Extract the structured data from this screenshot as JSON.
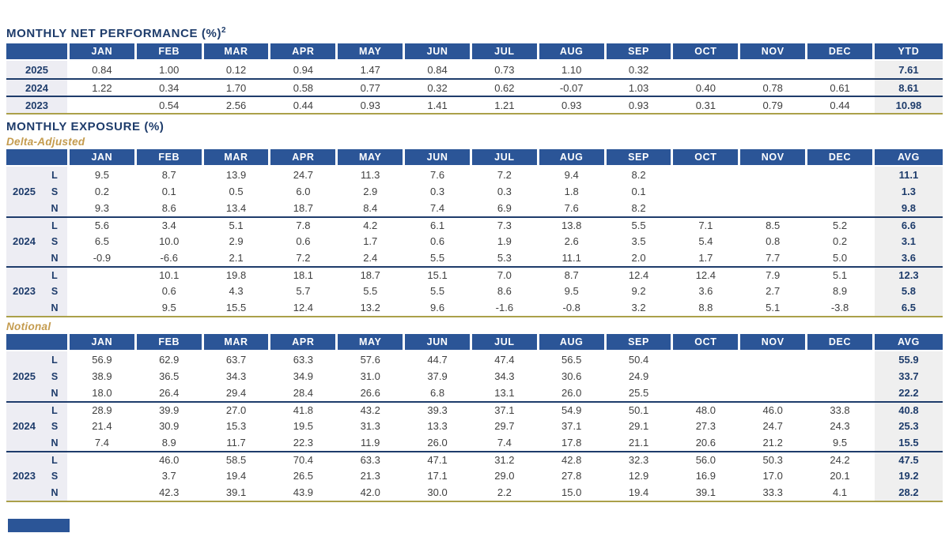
{
  "colors": {
    "header_blue": "#2b5597",
    "navy": "#1e3c6b",
    "gold_line": "#aba04a",
    "gold_text": "#c49b4e",
    "label_bg": "#ededf3",
    "avg_bg": "#efefef",
    "data_text": "#3f3f3f"
  },
  "months": [
    "JAN",
    "FEB",
    "MAR",
    "APR",
    "MAY",
    "JUN",
    "JUL",
    "AUG",
    "SEP",
    "OCT",
    "NOV",
    "DEC"
  ],
  "performance": {
    "title": "MONTHLY NET PERFORMANCE (%)",
    "footnote_ref": "2",
    "last_col": "YTD",
    "rows": [
      {
        "year": "2025",
        "values": [
          "0.84",
          "1.00",
          "0.12",
          "0.94",
          "1.47",
          "0.84",
          "0.73",
          "1.10",
          "0.32",
          "",
          "",
          ""
        ],
        "total": "7.61"
      },
      {
        "year": "2024",
        "values": [
          "1.22",
          "0.34",
          "1.70",
          "0.58",
          "0.77",
          "0.32",
          "0.62",
          "-0.07",
          "1.03",
          "0.40",
          "0.78",
          "0.61"
        ],
        "total": "8.61"
      },
      {
        "year": "2023",
        "values": [
          "",
          "0.54",
          "2.56",
          "0.44",
          "0.93",
          "1.41",
          "1.21",
          "0.93",
          "0.93",
          "0.31",
          "0.79",
          "0.44"
        ],
        "total": "10.98"
      }
    ]
  },
  "exposure": {
    "title": "MONTHLY EXPOSURE (%)",
    "tables": [
      {
        "subtitle": "Delta-Adjusted",
        "last_col": "AVG",
        "groups": [
          {
            "year": "2025",
            "rows": [
              {
                "label": "L",
                "values": [
                  "9.5",
                  "8.7",
                  "13.9",
                  "24.7",
                  "11.3",
                  "7.6",
                  "7.2",
                  "9.4",
                  "8.2",
                  "",
                  "",
                  ""
                ],
                "total": "11.1"
              },
              {
                "label": "S",
                "values": [
                  "0.2",
                  "0.1",
                  "0.5",
                  "6.0",
                  "2.9",
                  "0.3",
                  "0.3",
                  "1.8",
                  "0.1",
                  "",
                  "",
                  ""
                ],
                "total": "1.3"
              },
              {
                "label": "N",
                "values": [
                  "9.3",
                  "8.6",
                  "13.4",
                  "18.7",
                  "8.4",
                  "7.4",
                  "6.9",
                  "7.6",
                  "8.2",
                  "",
                  "",
                  ""
                ],
                "total": "9.8"
              }
            ]
          },
          {
            "year": "2024",
            "rows": [
              {
                "label": "L",
                "values": [
                  "5.6",
                  "3.4",
                  "5.1",
                  "7.8",
                  "4.2",
                  "6.1",
                  "7.3",
                  "13.8",
                  "5.5",
                  "7.1",
                  "8.5",
                  "5.2"
                ],
                "total": "6.6"
              },
              {
                "label": "S",
                "values": [
                  "6.5",
                  "10.0",
                  "2.9",
                  "0.6",
                  "1.7",
                  "0.6",
                  "1.9",
                  "2.6",
                  "3.5",
                  "5.4",
                  "0.8",
                  "0.2"
                ],
                "total": "3.1"
              },
              {
                "label": "N",
                "values": [
                  "-0.9",
                  "-6.6",
                  "2.1",
                  "7.2",
                  "2.4",
                  "5.5",
                  "5.3",
                  "11.1",
                  "2.0",
                  "1.7",
                  "7.7",
                  "5.0"
                ],
                "total": "3.6"
              }
            ]
          },
          {
            "year": "2023",
            "rows": [
              {
                "label": "L",
                "values": [
                  "",
                  "10.1",
                  "19.8",
                  "18.1",
                  "18.7",
                  "15.1",
                  "7.0",
                  "8.7",
                  "12.4",
                  "12.4",
                  "7.9",
                  "5.1"
                ],
                "total": "12.3"
              },
              {
                "label": "S",
                "values": [
                  "",
                  "0.6",
                  "4.3",
                  "5.7",
                  "5.5",
                  "5.5",
                  "8.6",
                  "9.5",
                  "9.2",
                  "3.6",
                  "2.7",
                  "8.9"
                ],
                "total": "5.8"
              },
              {
                "label": "N",
                "values": [
                  "",
                  "9.5",
                  "15.5",
                  "12.4",
                  "13.2",
                  "9.6",
                  "-1.6",
                  "-0.8",
                  "3.2",
                  "8.8",
                  "5.1",
                  "-3.8"
                ],
                "total": "6.5"
              }
            ]
          }
        ]
      },
      {
        "subtitle": "Notional",
        "last_col": "AVG",
        "groups": [
          {
            "year": "2025",
            "rows": [
              {
                "label": "L",
                "values": [
                  "56.9",
                  "62.9",
                  "63.7",
                  "63.3",
                  "57.6",
                  "44.7",
                  "47.4",
                  "56.5",
                  "50.4",
                  "",
                  "",
                  ""
                ],
                "total": "55.9"
              },
              {
                "label": "S",
                "values": [
                  "38.9",
                  "36.5",
                  "34.3",
                  "34.9",
                  "31.0",
                  "37.9",
                  "34.3",
                  "30.6",
                  "24.9",
                  "",
                  "",
                  ""
                ],
                "total": "33.7"
              },
              {
                "label": "N",
                "values": [
                  "18.0",
                  "26.4",
                  "29.4",
                  "28.4",
                  "26.6",
                  "6.8",
                  "13.1",
                  "26.0",
                  "25.5",
                  "",
                  "",
                  ""
                ],
                "total": "22.2"
              }
            ]
          },
          {
            "year": "2024",
            "rows": [
              {
                "label": "L",
                "values": [
                  "28.9",
                  "39.9",
                  "27.0",
                  "41.8",
                  "43.2",
                  "39.3",
                  "37.1",
                  "54.9",
                  "50.1",
                  "48.0",
                  "46.0",
                  "33.8"
                ],
                "total": "40.8"
              },
              {
                "label": "S",
                "values": [
                  "21.4",
                  "30.9",
                  "15.3",
                  "19.5",
                  "31.3",
                  "13.3",
                  "29.7",
                  "37.1",
                  "29.1",
                  "27.3",
                  "24.7",
                  "24.3"
                ],
                "total": "25.3"
              },
              {
                "label": "N",
                "values": [
                  "7.4",
                  "8.9",
                  "11.7",
                  "22.3",
                  "11.9",
                  "26.0",
                  "7.4",
                  "17.8",
                  "21.1",
                  "20.6",
                  "21.2",
                  "9.5"
                ],
                "total": "15.5"
              }
            ]
          },
          {
            "year": "2023",
            "rows": [
              {
                "label": "L",
                "values": [
                  "",
                  "46.0",
                  "58.5",
                  "70.4",
                  "63.3",
                  "47.1",
                  "31.2",
                  "42.8",
                  "32.3",
                  "56.0",
                  "50.3",
                  "24.2"
                ],
                "total": "47.5"
              },
              {
                "label": "S",
                "values": [
                  "",
                  "3.7",
                  "19.4",
                  "26.5",
                  "21.3",
                  "17.1",
                  "29.0",
                  "27.8",
                  "12.9",
                  "16.9",
                  "17.0",
                  "20.1"
                ],
                "total": "19.2"
              },
              {
                "label": "N",
                "values": [
                  "",
                  "42.3",
                  "39.1",
                  "43.9",
                  "42.0",
                  "30.0",
                  "2.2",
                  "15.0",
                  "19.4",
                  "39.1",
                  "33.3",
                  "4.1"
                ],
                "total": "28.2"
              }
            ]
          }
        ]
      }
    ]
  }
}
